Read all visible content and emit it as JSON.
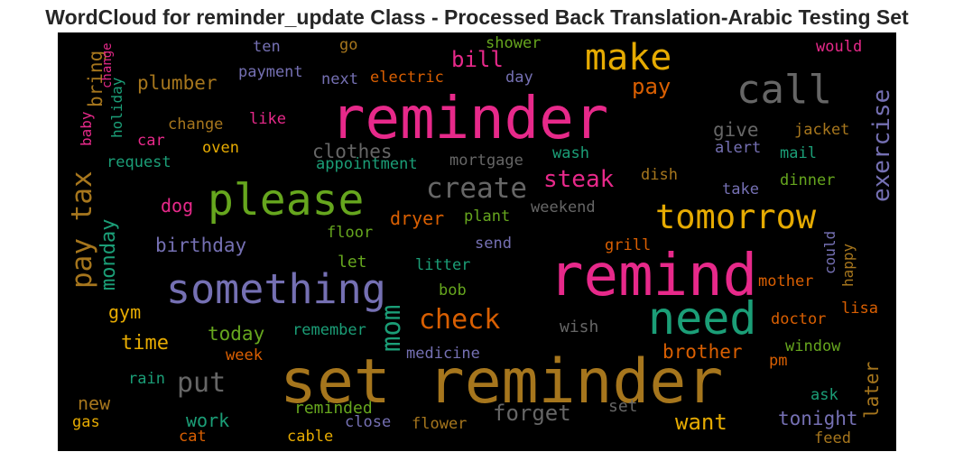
{
  "title": "WordCloud for reminder_update Class - Processed Back Translation-Arabic Testing Set",
  "words": {
    "set_reminder": "set reminder",
    "reminder": "reminder",
    "remind": "remind",
    "please": "please",
    "something": "something",
    "need": "need",
    "call": "call",
    "make": "make",
    "tomorrow": "tomorrow",
    "create": "create",
    "pay_tax": "pay tax",
    "check": "check",
    "put": "put",
    "mom": "mom",
    "exercise": "exercise",
    "steak": "steak",
    "bill": "bill",
    "pay": "pay",
    "forget": "forget",
    "want": "want",
    "clothes": "clothes",
    "monday": "monday",
    "birthday": "birthday",
    "time": "time",
    "tonight": "tonight",
    "brother": "brother",
    "today": "today",
    "plumber": "plumber",
    "give": "give",
    "dryer": "dryer",
    "work": "work",
    "reminded": "reminded",
    "new": "new",
    "gym": "gym",
    "dog": "dog",
    "bring": "bring",
    "later": "later",
    "let": "let",
    "set": "set",
    "wish": "wish",
    "doctor": "doctor",
    "mother": "mother",
    "lisa": "lisa",
    "window": "window",
    "jacket": "jacket",
    "dinner": "dinner",
    "mail": "mail",
    "alert": "alert",
    "take": "take",
    "dish": "dish",
    "grill": "grill",
    "could": "could",
    "happy": "happy",
    "wash": "wash",
    "mortgage": "mortgage",
    "weekend": "weekend",
    "appointment": "appointment",
    "request": "request",
    "oven": "oven",
    "car": "car",
    "change": "change",
    "like": "like",
    "baby": "baby",
    "holiday": "holiday",
    "go": "go",
    "shower": "shower",
    "would": "would",
    "ten": "ten",
    "payment": "payment",
    "next": "next",
    "electric": "electric",
    "day": "day",
    "plant": "plant",
    "send": "send",
    "floor": "floor",
    "litter": "litter",
    "bob": "bob",
    "remember": "remember",
    "week": "week",
    "medicine": "medicine",
    "rain": "rain",
    "gas": "gas",
    "cat": "cat",
    "cable": "cable",
    "close": "close",
    "flower": "flower",
    "pm": "pm",
    "ask": "ask",
    "feed": "feed"
  },
  "colors": {
    "magenta": "#e7298a",
    "gold": "#a6761d",
    "green": "#66a61e",
    "purple": "#7570b3",
    "teal": "#1b9e77",
    "orange": "#d95f02",
    "yellow": "#e6ab02",
    "gray": "#666666",
    "background": "#000000"
  }
}
